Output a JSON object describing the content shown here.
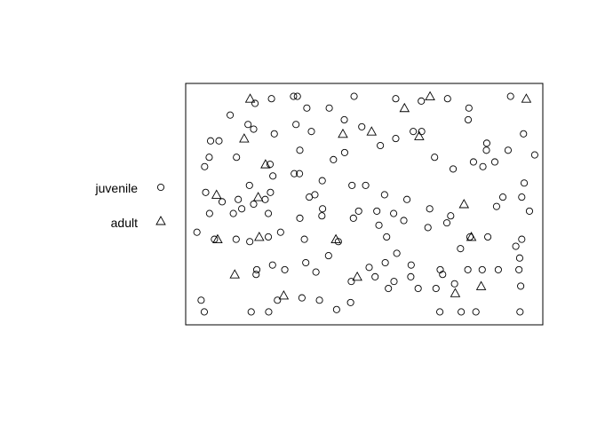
{
  "chart_data": {
    "type": "scatter",
    "title": "",
    "xlabel": "",
    "ylabel": "",
    "axes_shown": false,
    "frame": "box",
    "xlim": [
      0,
      1
    ],
    "ylim": [
      0,
      1
    ],
    "legend_position": "left",
    "series": [
      {
        "name": "juvenile",
        "marker": "circle",
        "color": "#000000",
        "points": [
          [
            0.309,
            0.96
          ],
          [
            0.235,
            0.95
          ],
          [
            0.188,
            0.93
          ],
          [
            0.117,
            0.88
          ],
          [
            0.168,
            0.84
          ],
          [
            0.336,
            0.91
          ],
          [
            0.4,
            0.91
          ],
          [
            0.471,
            0.96
          ],
          [
            0.298,
            0.96
          ],
          [
            0.59,
            0.95
          ],
          [
            0.663,
            0.94
          ],
          [
            0.738,
            0.95
          ],
          [
            0.799,
            0.91
          ],
          [
            0.918,
            0.96
          ],
          [
            0.797,
            0.86
          ],
          [
            0.955,
            0.8
          ],
          [
            0.85,
            0.76
          ],
          [
            0.911,
            0.73
          ],
          [
            0.987,
            0.71
          ],
          [
            0.957,
            0.59
          ],
          [
            0.95,
            0.53
          ],
          [
            0.972,
            0.47
          ],
          [
            0.896,
            0.53
          ],
          [
            0.878,
            0.49
          ],
          [
            0.061,
            0.77
          ],
          [
            0.085,
            0.77
          ],
          [
            0.057,
            0.7
          ],
          [
            0.044,
            0.66
          ],
          [
            0.135,
            0.7
          ],
          [
            0.184,
            0.82
          ],
          [
            0.243,
            0.8
          ],
          [
            0.305,
            0.84
          ],
          [
            0.349,
            0.81
          ],
          [
            0.316,
            0.73
          ],
          [
            0.231,
            0.67
          ],
          [
            0.239,
            0.62
          ],
          [
            0.3,
            0.63
          ],
          [
            0.359,
            0.54
          ],
          [
            0.381,
            0.48
          ],
          [
            0.315,
            0.63
          ],
          [
            0.444,
            0.72
          ],
          [
            0.493,
            0.83
          ],
          [
            0.546,
            0.75
          ],
          [
            0.59,
            0.78
          ],
          [
            0.664,
            0.81
          ],
          [
            0.701,
            0.7
          ],
          [
            0.754,
            0.65
          ],
          [
            0.812,
            0.68
          ],
          [
            0.839,
            0.66
          ],
          [
            0.873,
            0.68
          ],
          [
            0.849,
            0.73
          ],
          [
            0.64,
            0.81
          ],
          [
            0.584,
            0.46
          ],
          [
            0.613,
            0.43
          ],
          [
            0.687,
            0.48
          ],
          [
            0.736,
            0.42
          ],
          [
            0.747,
            0.45
          ],
          [
            0.802,
            0.36
          ],
          [
            0.95,
            0.35
          ],
          [
            0.933,
            0.32
          ],
          [
            0.944,
            0.27
          ],
          [
            0.758,
            0.16
          ],
          [
            0.796,
            0.22
          ],
          [
            0.837,
            0.22
          ],
          [
            0.883,
            0.22
          ],
          [
            0.942,
            0.22
          ],
          [
            0.947,
            0.15
          ],
          [
            0.945,
            0.04
          ],
          [
            0.819,
            0.04
          ],
          [
            0.777,
            0.04
          ],
          [
            0.716,
            0.04
          ],
          [
            0.705,
            0.14
          ],
          [
            0.654,
            0.14
          ],
          [
            0.633,
            0.19
          ],
          [
            0.634,
            0.24
          ],
          [
            0.585,
            0.17
          ],
          [
            0.569,
            0.14
          ],
          [
            0.593,
            0.29
          ],
          [
            0.56,
            0.25
          ],
          [
            0.531,
            0.19
          ],
          [
            0.536,
            0.47
          ],
          [
            0.558,
            0.54
          ],
          [
            0.622,
            0.52
          ],
          [
            0.682,
            0.4
          ],
          [
            0.717,
            0.22
          ],
          [
            0.724,
            0.2
          ],
          [
            0.775,
            0.31
          ],
          [
            0.853,
            0.36
          ],
          [
            0.465,
            0.58
          ],
          [
            0.412,
            0.69
          ],
          [
            0.443,
            0.86
          ],
          [
            0.469,
            0.44
          ],
          [
            0.484,
            0.47
          ],
          [
            0.398,
            0.28
          ],
          [
            0.426,
            0.34
          ],
          [
            0.542,
            0.41
          ],
          [
            0.514,
            0.23
          ],
          [
            0.463,
            0.17
          ],
          [
            0.504,
            0.58
          ],
          [
            0.38,
            0.6
          ],
          [
            0.379,
            0.45
          ],
          [
            0.343,
            0.53
          ],
          [
            0.316,
            0.44
          ],
          [
            0.261,
            0.38
          ],
          [
            0.226,
            0.36
          ],
          [
            0.333,
            0.25
          ],
          [
            0.362,
            0.21
          ],
          [
            0.238,
            0.24
          ],
          [
            0.191,
            0.2
          ],
          [
            0.273,
            0.22
          ],
          [
            0.126,
            0.46
          ],
          [
            0.058,
            0.46
          ],
          [
            0.226,
            0.46
          ],
          [
            0.184,
            0.5
          ],
          [
            0.14,
            0.52
          ],
          [
            0.232,
            0.55
          ],
          [
            0.172,
            0.58
          ],
          [
            0.15,
            0.48
          ],
          [
            0.217,
            0.52
          ],
          [
            0.094,
            0.51
          ],
          [
            0.047,
            0.55
          ],
          [
            0.022,
            0.38
          ],
          [
            0.134,
            0.35
          ],
          [
            0.193,
            0.22
          ],
          [
            0.252,
            0.09
          ],
          [
            0.322,
            0.1
          ],
          [
            0.372,
            0.09
          ],
          [
            0.461,
            0.08
          ],
          [
            0.421,
            0.05
          ],
          [
            0.177,
            0.04
          ],
          [
            0.227,
            0.04
          ],
          [
            0.034,
            0.09
          ],
          [
            0.043,
            0.04
          ],
          [
            0.072,
            0.35
          ],
          [
            0.173,
            0.34
          ],
          [
            0.329,
            0.35
          ],
          [
            0.564,
            0.36
          ]
        ]
      },
      {
        "name": "adult",
        "marker": "triangle",
        "color": "#000000",
        "points": [
          [
            0.174,
            0.95
          ],
          [
            0.688,
            0.96
          ],
          [
            0.963,
            0.95
          ],
          [
            0.615,
            0.91
          ],
          [
            0.521,
            0.81
          ],
          [
            0.439,
            0.8
          ],
          [
            0.657,
            0.79
          ],
          [
            0.157,
            0.78
          ],
          [
            0.218,
            0.67
          ],
          [
            0.078,
            0.54
          ],
          [
            0.197,
            0.53
          ],
          [
            0.785,
            0.5
          ],
          [
            0.081,
            0.35
          ],
          [
            0.2,
            0.36
          ],
          [
            0.419,
            0.35
          ],
          [
            0.806,
            0.36
          ],
          [
            0.13,
            0.2
          ],
          [
            0.48,
            0.19
          ],
          [
            0.834,
            0.15
          ],
          [
            0.27,
            0.11
          ],
          [
            0.76,
            0.12
          ]
        ]
      }
    ]
  }
}
